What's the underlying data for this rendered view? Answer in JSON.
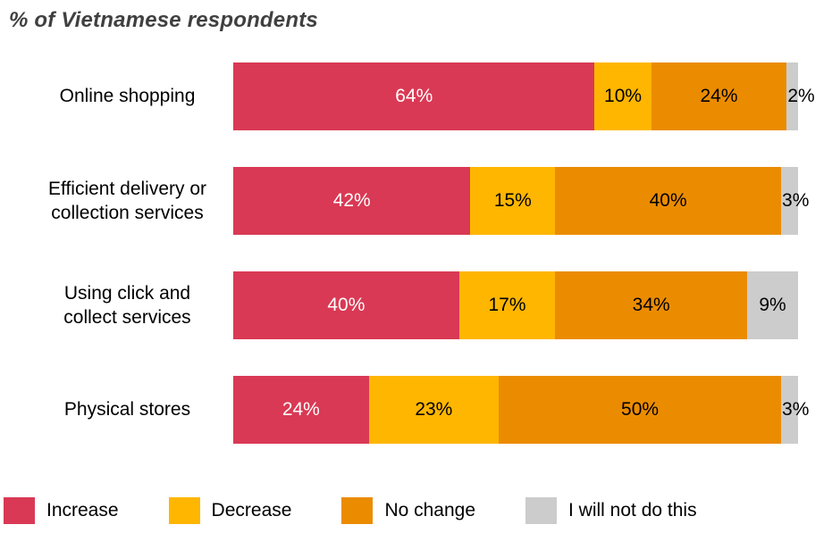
{
  "title": "% of Vietnamese respondents",
  "chart_data": {
    "type": "bar",
    "orientation": "horizontal",
    "stacked": true,
    "unit": "%",
    "title": "% of Vietnamese respondents",
    "categories": [
      "Online shopping",
      "Efficient delivery or\ncollection services",
      "Using click and\ncollect services",
      "Physical stores"
    ],
    "series": [
      {
        "name": "Increase",
        "color": "#D93954",
        "label_color": "#FFFFFF",
        "values": [
          64,
          42,
          40,
          24
        ]
      },
      {
        "name": "Decrease",
        "color": "#FFB600",
        "label_color": "#000000",
        "values": [
          10,
          15,
          17,
          23
        ]
      },
      {
        "name": "No change",
        "color": "#EB8C00",
        "label_color": "#000000",
        "values": [
          24,
          40,
          34,
          50
        ]
      },
      {
        "name": "I will not do this",
        "color": "#CCCCCC",
        "label_color": "#000000",
        "values": [
          2,
          3,
          9,
          3
        ]
      }
    ],
    "xlim": [
      0,
      100
    ],
    "grid": false,
    "legend_position": "bottom"
  }
}
